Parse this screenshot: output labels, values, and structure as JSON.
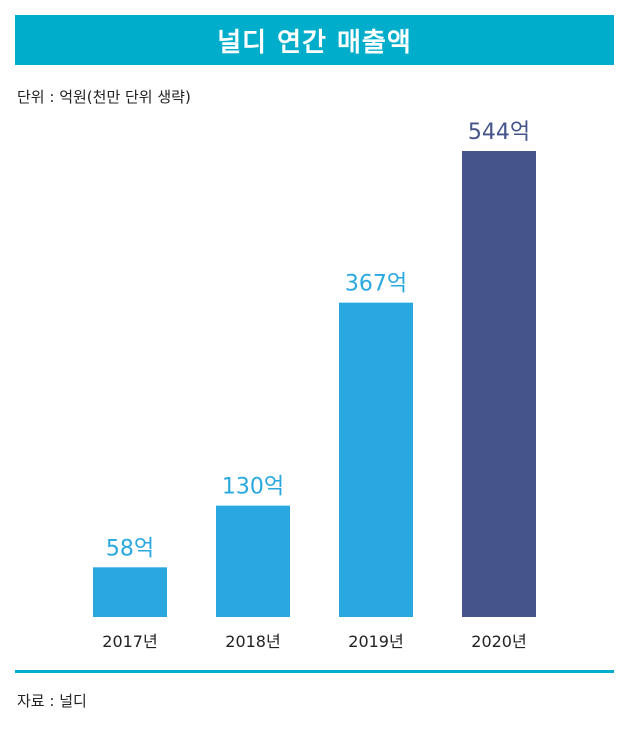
{
  "chart_data": {
    "type": "bar",
    "title": "널디 연간 매출액",
    "unit_note": "단위 : 억원(천만 단위 생략)",
    "categories": [
      "2017년",
      "2018년",
      "2019년",
      "2020년"
    ],
    "values": [
      58,
      130,
      367,
      544
    ],
    "data_labels": [
      "58억",
      "130억",
      "367억",
      "544억"
    ],
    "ylim": [
      0,
      544
    ],
    "grid": false,
    "colors": [
      "#29A8E0",
      "#29A8E0",
      "#29A8E0",
      "#45548A"
    ],
    "source": "자료 : 널디"
  }
}
